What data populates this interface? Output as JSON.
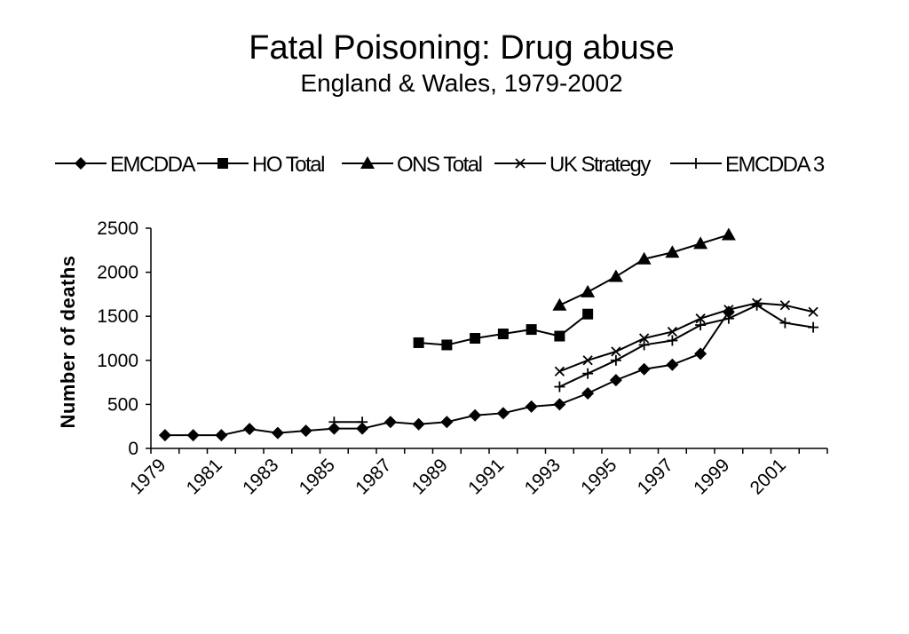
{
  "chart_data": {
    "type": "line",
    "title": "Fatal Poisoning: Drug abuse",
    "subtitle": "England & Wales, 1979-2002",
    "xlabel": "",
    "ylabel": "Number of deaths",
    "ylim": [
      0,
      2500
    ],
    "yticks": [
      "0",
      "500",
      "1000",
      "1500",
      "2000",
      "2500"
    ],
    "xlim": [
      1979,
      2002
    ],
    "xticks": [
      "1979",
      "1981",
      "1983",
      "1985",
      "1987",
      "1989",
      "1991",
      "1993",
      "1995",
      "1997",
      "1999",
      "2001"
    ],
    "grid": false,
    "legend_position": "top",
    "series": [
      {
        "name": "EMCDDA",
        "marker": "diamond",
        "x": [
          1979,
          1980,
          1981,
          1982,
          1983,
          1984,
          1985,
          1986,
          1987,
          1988,
          1989,
          1990,
          1991,
          1992,
          1993,
          1994,
          1995,
          1996,
          1997,
          1998,
          1999
        ],
        "y": [
          150,
          150,
          150,
          220,
          175,
          200,
          225,
          225,
          300,
          275,
          300,
          375,
          400,
          475,
          500,
          625,
          775,
          900,
          950,
          1075,
          1550
        ]
      },
      {
        "name": "HO Total",
        "marker": "square",
        "x": [
          1988,
          1989,
          1990,
          1991,
          1992,
          1993,
          1994
        ],
        "y": [
          1200,
          1175,
          1250,
          1300,
          1350,
          1275,
          1525
        ]
      },
      {
        "name": "ONS Total",
        "marker": "triangle",
        "x": [
          1993,
          1994,
          1995,
          1996,
          1997,
          1998,
          1999
        ],
        "y": [
          1625,
          1775,
          1950,
          2150,
          2225,
          2325,
          2425
        ]
      },
      {
        "name": "UK Strategy",
        "marker": "x",
        "x": [
          1993,
          1994,
          1995,
          1996,
          1997,
          1998,
          1999,
          2000,
          2001,
          2002
        ],
        "y": [
          875,
          1000,
          1100,
          1250,
          1325,
          1475,
          1575,
          1650,
          1625,
          1550
        ]
      },
      {
        "name": "EMCDDA 3",
        "marker": "plus",
        "x": [
          1985,
          1986,
          1993,
          1994,
          1995,
          1996,
          1997,
          1998,
          1999,
          2000,
          2001,
          2002
        ],
        "y": [
          300,
          300,
          700,
          850,
          1000,
          1175,
          1225,
          1400,
          1475,
          1625,
          1425,
          1375
        ],
        "segments": [
          [
            0,
            1
          ],
          [
            2,
            11
          ]
        ]
      }
    ]
  }
}
